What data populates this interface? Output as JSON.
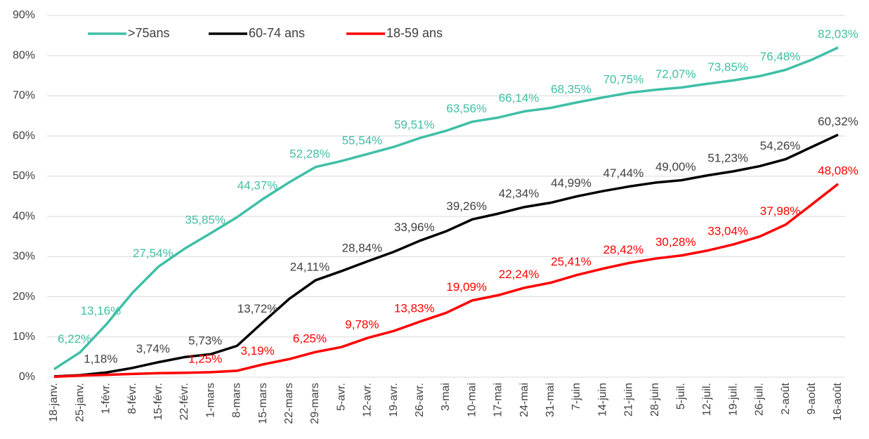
{
  "chart_data": {
    "type": "line",
    "categories": [
      "18-janv.",
      "25-janv.",
      "1-févr.",
      "8-févr.",
      "15-févr.",
      "22-févr.",
      "1-mars",
      "8-mars",
      "15-mars",
      "22-mars",
      "29-mars",
      "5-avr.",
      "12-avr.",
      "19-avr.",
      "26-avr.",
      "3-mai",
      "10-mai",
      "17-mai",
      "24-mai",
      "31-mai",
      "7-juin",
      "14-juin",
      "21-juin",
      "28-juin",
      "5-juil.",
      "12-juil.",
      "19-juil.",
      "26-juil.",
      "2-août",
      "9-août",
      "16-août"
    ],
    "series": [
      {
        "name": ">75ans",
        "color": "#3fbfa6",
        "values": [
          2,
          6.22,
          13.16,
          21,
          27.54,
          32,
          35.85,
          39.8,
          44.37,
          48.5,
          52.28,
          53.8,
          55.54,
          57.3,
          59.51,
          61.3,
          63.56,
          64.6,
          66.14,
          67,
          68.35,
          69.6,
          70.75,
          71.5,
          72.07,
          73,
          73.85,
          74.9,
          76.48,
          79,
          82.03
        ],
        "value_labels": [
          null,
          "6,22%",
          "13,16%",
          null,
          "27,54%",
          null,
          "35,85%",
          null,
          "44,37%",
          null,
          "52,28%",
          null,
          "55,54%",
          null,
          "59,51%",
          null,
          "63,56%",
          null,
          "66,14%",
          null,
          "68,35%",
          null,
          "70,75%",
          null,
          "72,07%",
          null,
          "73,85%",
          null,
          "76,48%",
          null,
          "82,03%"
        ]
      },
      {
        "name": "60-74 ans",
        "color": "#000000",
        "values": [
          0.2,
          0.5,
          1.18,
          2.3,
          3.74,
          5,
          5.73,
          7.8,
          13.72,
          19.5,
          24.11,
          26.4,
          28.84,
          31.2,
          33.96,
          36.3,
          39.26,
          40.7,
          42.34,
          43.4,
          44.99,
          46.3,
          47.44,
          48.4,
          49.0,
          50.2,
          51.23,
          52.5,
          54.26,
          57.3,
          60.32
        ],
        "value_labels": [
          null,
          null,
          "1,18%",
          null,
          "3,74%",
          null,
          "5,73%",
          null,
          "13,72%",
          null,
          "24,11%",
          null,
          "28,84%",
          null,
          "33,96%",
          null,
          "39,26%",
          null,
          "42,34%",
          null,
          "44,99%",
          null,
          "47,44%",
          null,
          "49,00%",
          null,
          "51,23%",
          null,
          "54,26%",
          null,
          "60,32%"
        ]
      },
      {
        "name": "18-59 ans",
        "color": "#ff0000",
        "values": [
          0.1,
          0.4,
          0.6,
          0.8,
          1.0,
          1.1,
          1.25,
          1.6,
          3.19,
          4.5,
          6.25,
          7.5,
          9.78,
          11.5,
          13.83,
          16,
          19.09,
          20.4,
          22.24,
          23.5,
          25.41,
          27,
          28.42,
          29.5,
          30.28,
          31.5,
          33.04,
          35,
          37.98,
          43,
          48.08
        ],
        "value_labels": [
          null,
          null,
          null,
          null,
          null,
          null,
          "1,25%",
          null,
          "3,19%",
          null,
          "6,25%",
          null,
          "9,78%",
          null,
          "13,83%",
          null,
          "19,09%",
          null,
          "22,24%",
          null,
          "25,41%",
          null,
          "28,42%",
          null,
          "30,28%",
          null,
          "33,04%",
          null,
          "37,98%",
          null,
          "48,08%"
        ]
      }
    ],
    "ylim": [
      0,
      90
    ],
    "yticks": [
      {
        "value": 0,
        "label": "0%"
      },
      {
        "value": 10,
        "label": "10%"
      },
      {
        "value": 20,
        "label": "20%"
      },
      {
        "value": 30,
        "label": "30%"
      },
      {
        "value": 40,
        "label": "40%"
      },
      {
        "value": 50,
        "label": "50%"
      },
      {
        "value": 60,
        "label": "60%"
      },
      {
        "value": 70,
        "label": "70%"
      },
      {
        "value": 80,
        "label": "80%"
      },
      {
        "value": 90,
        "label": "90%"
      }
    ],
    "grid": true,
    "legend": "top-left"
  }
}
